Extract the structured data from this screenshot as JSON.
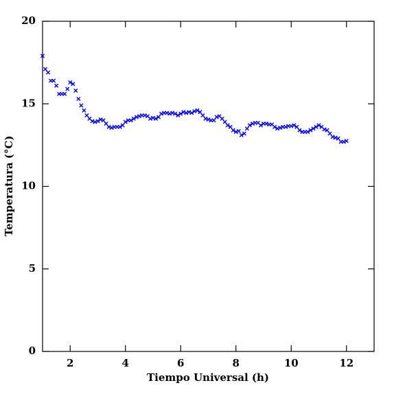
{
  "chart_data": {
    "type": "scatter",
    "x_label": "Tiempo Universal (h)",
    "y_label": "Temperatura (°C)",
    "xlim": [
      1,
      13
    ],
    "ylim": [
      0,
      20
    ],
    "xticks": [
      2,
      4,
      6,
      8,
      10,
      12
    ],
    "yticks": [
      0,
      5,
      10,
      15,
      20
    ],
    "marker": "x",
    "color": "#0000ff",
    "x": [
      1.0,
      1.1,
      1.2,
      1.3,
      1.4,
      1.5,
      1.6,
      1.7,
      1.8,
      1.9,
      2.0,
      2.1,
      2.2,
      2.3,
      2.4,
      2.5,
      2.6,
      2.7,
      2.8,
      2.9,
      3.0,
      3.1,
      3.2,
      3.3,
      3.4,
      3.5,
      3.6,
      3.7,
      3.8,
      3.9,
      4.0,
      4.1,
      4.2,
      4.3,
      4.4,
      4.5,
      4.6,
      4.7,
      4.8,
      4.9,
      5.0,
      5.1,
      5.2,
      5.3,
      5.4,
      5.5,
      5.6,
      5.7,
      5.8,
      5.9,
      6.0,
      6.1,
      6.2,
      6.3,
      6.4,
      6.5,
      6.6,
      6.7,
      6.8,
      6.9,
      7.0,
      7.1,
      7.2,
      7.3,
      7.4,
      7.5,
      7.6,
      7.7,
      7.8,
      7.9,
      8.0,
      8.1,
      8.2,
      8.3,
      8.4,
      8.5,
      8.6,
      8.7,
      8.8,
      8.9,
      9.0,
      9.1,
      9.2,
      9.3,
      9.4,
      9.5,
      9.6,
      9.7,
      9.8,
      9.9,
      10.0,
      10.1,
      10.2,
      10.3,
      10.4,
      10.5,
      10.6,
      10.7,
      10.8,
      10.9,
      11.0,
      11.1,
      11.2,
      11.3,
      11.4,
      11.5,
      11.6,
      11.7,
      11.8,
      11.9,
      12.0
    ],
    "values": [
      17.9,
      17.1,
      16.9,
      16.4,
      16.4,
      16.1,
      15.6,
      15.6,
      15.6,
      15.9,
      16.3,
      16.2,
      15.8,
      15.3,
      14.9,
      14.6,
      14.3,
      14.1,
      13.95,
      13.9,
      13.95,
      14.05,
      14.0,
      13.8,
      13.6,
      13.55,
      13.6,
      13.6,
      13.6,
      13.7,
      13.9,
      14.0,
      14.0,
      14.1,
      14.2,
      14.25,
      14.3,
      14.3,
      14.25,
      14.1,
      14.15,
      14.1,
      14.2,
      14.4,
      14.45,
      14.45,
      14.4,
      14.45,
      14.4,
      14.3,
      14.4,
      14.5,
      14.45,
      14.5,
      14.45,
      14.55,
      14.6,
      14.5,
      14.3,
      14.1,
      14.05,
      14.0,
      14.0,
      14.2,
      14.25,
      14.1,
      13.9,
      13.7,
      13.6,
      13.4,
      13.3,
      13.35,
      13.1,
      13.2,
      13.5,
      13.7,
      13.8,
      13.85,
      13.85,
      13.7,
      13.8,
      13.8,
      13.75,
      13.75,
      13.6,
      13.5,
      13.55,
      13.6,
      13.6,
      13.65,
      13.65,
      13.7,
      13.6,
      13.4,
      13.3,
      13.3,
      13.3,
      13.4,
      13.5,
      13.6,
      13.7,
      13.6,
      13.45,
      13.4,
      13.2,
      13.0,
      12.95,
      12.9,
      12.7,
      12.7,
      12.75
    ]
  }
}
